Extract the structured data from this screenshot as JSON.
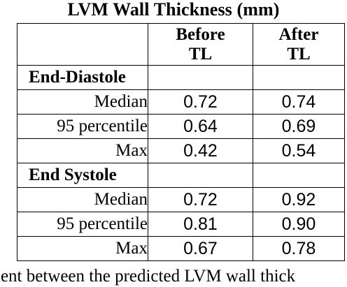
{
  "title": "LVM Wall Thickness (mm)",
  "table": {
    "col_headers": [
      "",
      "Before\nTL",
      "After\nTL"
    ],
    "before_line1": "Before",
    "before_line2": "TL",
    "after_line1": "After",
    "after_line2": "TL",
    "sections": [
      {
        "name": "End-Diastole",
        "rows": [
          {
            "label": "Median",
            "before": "0.72",
            "after": "0.74"
          },
          {
            "label": "95 percentile",
            "before": "0.64",
            "after": "0.69"
          },
          {
            "label": "Max",
            "before": "0.42",
            "after": "0.54"
          }
        ]
      },
      {
        "name": "End Systole",
        "rows": [
          {
            "label": "Median",
            "before": "0.72",
            "after": "0.92"
          },
          {
            "label": "95 percentile",
            "before": "0.81",
            "after": "0.90"
          },
          {
            "label": "Max",
            "before": "0.67",
            "after": "0.78"
          }
        ]
      }
    ]
  },
  "caption_fragment": "ient between the predicted LVM wall thick"
}
